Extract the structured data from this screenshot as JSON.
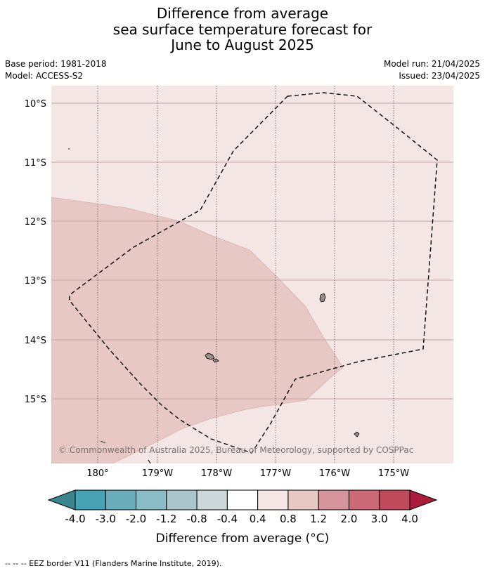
{
  "title": {
    "line1": "Difference from average",
    "line2": "sea surface temperature forecast for",
    "line3": "June to August 2025"
  },
  "meta": {
    "base_period": "Base period: 1981-2018",
    "model": "Model: ACCESS-S2",
    "model_run": "Model run: 21/04/2025",
    "issued": "Issued: 23/04/2025"
  },
  "map": {
    "lat_labels": [
      "10°S",
      "11°S",
      "12°S",
      "13°S",
      "14°S",
      "15°S"
    ],
    "lon_labels": [
      "180°",
      "179°W",
      "178°W",
      "177°W",
      "176°W",
      "175°W"
    ],
    "copyright": "© Commonwealth of Australia 2025, Bureau of Meteorology, supported by COSPPac",
    "colors": {
      "background_anomaly_0_4_to_0_8": "#f4e6e5",
      "anomaly_0_8_to_1_2": "#e8c8c4",
      "land": "#9a8a88"
    }
  },
  "colorbar": {
    "ticks": [
      "-4.0",
      "-3.0",
      "-2.0",
      "-1.2",
      "-0.8",
      "-0.4",
      "0.4",
      "0.8",
      "1.2",
      "2.0",
      "3.0",
      "4.0"
    ],
    "segment_colors": [
      "#47a3b4",
      "#6aaebb",
      "#8bbdc8",
      "#aac6cc",
      "#ccd8da",
      "#ffffff",
      "#f4e6e5",
      "#e8c8c4",
      "#d6949c",
      "#cd6877",
      "#c04a5b"
    ],
    "low_extend_color": "#3a8590",
    "high_extend_color": "#ab1c3c",
    "label": "Difference from average (°C)"
  },
  "legend": {
    "eez_text": "--  --  -- EEZ border V11 (Flanders Marine Institute, 2019)."
  }
}
